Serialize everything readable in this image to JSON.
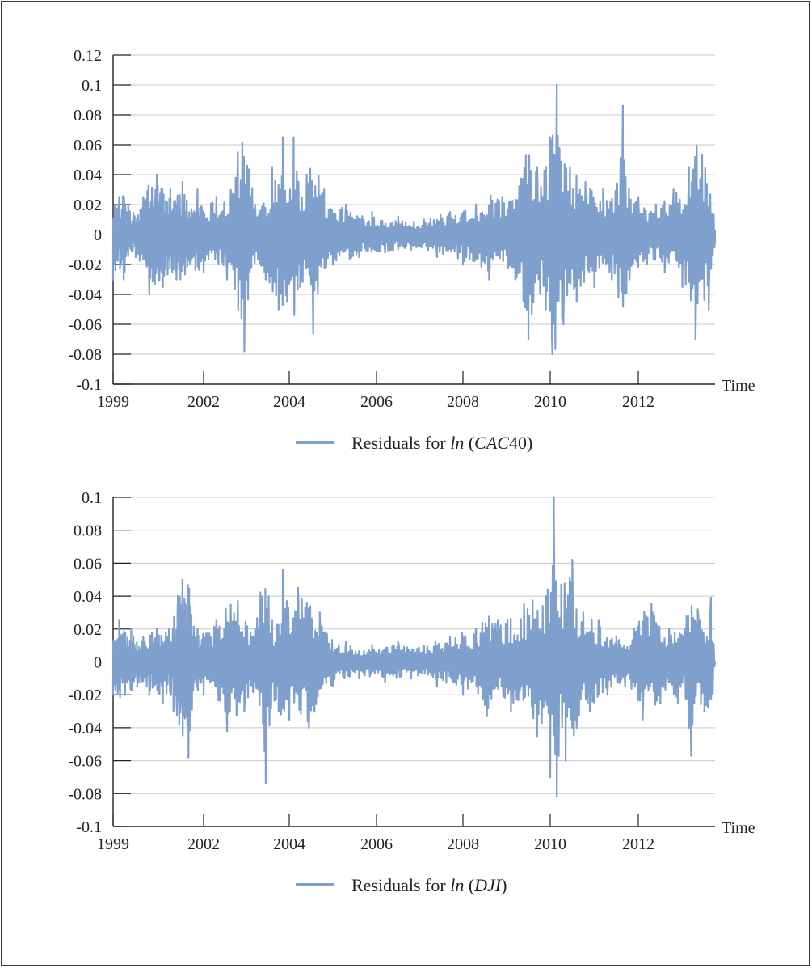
{
  "colors": {
    "series": "#7f9fcd",
    "grid": "#c8c8c8",
    "axis": "#222222"
  },
  "chart_data": [
    {
      "type": "line",
      "xlabel": "Time",
      "ylabel": "",
      "ylim": [
        -0.1,
        0.12
      ],
      "yticks": [
        "0.12",
        "0.1",
        "0.08",
        "0.06",
        "0.04",
        "0.02",
        "0",
        "-0.02",
        "-0.04",
        "-0.06",
        "-0.08",
        "-0.1"
      ],
      "xticks": [
        "1999",
        "2002",
        "2004",
        "2006",
        "2008",
        "2010",
        "2012"
      ],
      "grid": true,
      "legend_position": "bottom",
      "series": [
        {
          "legend": {
            "prefix": "Residuals for ",
            "fn": "ln",
            "open": " (",
            "arg": "CAC",
            "suffix": "40)"
          },
          "x": [
            1999.0,
            1999.2,
            1999.35,
            1999.5,
            1999.75,
            2000.0,
            2000.2,
            2000.45,
            2000.65,
            2000.9,
            2001.1,
            2001.3,
            2001.55,
            2001.8,
            2002.0,
            2002.3,
            2002.55,
            2002.8,
            2002.95,
            2003.2,
            2003.45,
            2003.6,
            2003.75,
            2003.85,
            2003.95,
            2004.1,
            2004.25,
            2004.4,
            2004.55,
            2004.8,
            2005.0,
            2005.3,
            2005.6,
            2005.9,
            2006.2,
            2006.5,
            2006.8,
            2007.1,
            2007.4,
            2007.7,
            2008.0,
            2008.3,
            2008.6,
            2008.9,
            2009.2,
            2009.5,
            2009.7,
            2009.9,
            2010.0,
            2010.05,
            2010.15,
            2010.3,
            2010.45,
            2010.6,
            2010.8,
            2011.0,
            2011.2,
            2011.4,
            2011.55,
            2011.65,
            2011.8,
            2012.0,
            2012.2,
            2012.4,
            2012.6,
            2012.8,
            2013.0,
            2013.15,
            2013.3,
            2013.45,
            2013.6,
            2013.75
          ],
          "y": [
            -0.03,
            0.025,
            -0.03,
            0.02,
            -0.015,
            0.025,
            -0.04,
            0.04,
            -0.035,
            0.03,
            -0.03,
            0.035,
            -0.02,
            0.03,
            -0.025,
            0.025,
            -0.03,
            0.055,
            -0.078,
            0.02,
            -0.03,
            0.045,
            -0.05,
            0.065,
            -0.045,
            0.065,
            -0.035,
            0.04,
            -0.066,
            0.03,
            -0.02,
            0.02,
            -0.015,
            0.015,
            -0.012,
            0.012,
            -0.01,
            0.01,
            -0.015,
            0.015,
            -0.02,
            0.02,
            -0.03,
            0.025,
            -0.03,
            -0.07,
            0.045,
            -0.05,
            0.065,
            -0.08,
            0.1,
            -0.06,
            0.045,
            -0.045,
            0.035,
            -0.035,
            0.03,
            -0.03,
            -0.042,
            0.086,
            -0.03,
            0.025,
            -0.02,
            0.02,
            -0.025,
            0.03,
            -0.035,
            0.045,
            -0.07,
            0.053,
            -0.05,
            -0.005
          ]
        }
      ]
    },
    {
      "type": "line",
      "xlabel": "Time",
      "ylabel": "",
      "ylim": [
        -0.1,
        0.1
      ],
      "yticks": [
        "0.1",
        "0.08",
        "0.06",
        "0.04",
        "0.02",
        "0",
        "-0.02",
        "-0.04",
        "-0.06",
        "-0.08",
        "-0.1"
      ],
      "xticks": [
        "1999",
        "2002",
        "2004",
        "2006",
        "2008",
        "2010",
        "2012"
      ],
      "grid": true,
      "legend_position": "bottom",
      "series": [
        {
          "legend": {
            "prefix": "Residuals for ",
            "fn": "ln",
            "open": " (",
            "arg": "DJI",
            "suffix": ")"
          },
          "x": [
            1999.0,
            1999.2,
            1999.4,
            1999.6,
            1999.8,
            2000.0,
            2000.2,
            2000.45,
            2000.65,
            2000.85,
            2001.0,
            2001.15,
            2001.3,
            2001.5,
            2001.8,
            2002.0,
            2002.3,
            2002.55,
            2002.8,
            2002.95,
            2003.2,
            2003.45,
            2003.6,
            2003.75,
            2003.85,
            2004.0,
            2004.2,
            2004.45,
            2004.7,
            2005.0,
            2005.3,
            2005.6,
            2005.9,
            2006.2,
            2006.5,
            2006.8,
            2007.1,
            2007.4,
            2007.7,
            2008.0,
            2008.3,
            2008.55,
            2008.8,
            2009.1,
            2009.4,
            2009.7,
            2009.9,
            2010.0,
            2010.08,
            2010.15,
            2010.25,
            2010.35,
            2010.5,
            2010.6,
            2010.75,
            2010.9,
            2011.1,
            2011.3,
            2011.5,
            2011.7,
            2011.9,
            2012.1,
            2012.3,
            2012.5,
            2012.7,
            2012.9,
            2013.05,
            2013.2,
            2013.35,
            2013.5,
            2013.65,
            2013.75
          ],
          "y": [
            -0.02,
            0.025,
            -0.02,
            0.02,
            -0.015,
            0.015,
            -0.02,
            0.02,
            -0.025,
            0.02,
            -0.03,
            0.04,
            0.05,
            -0.058,
            0.02,
            -0.02,
            0.025,
            -0.042,
            0.037,
            -0.03,
            0.02,
            -0.074,
            0.025,
            -0.03,
            0.056,
            -0.035,
            0.045,
            -0.04,
            0.03,
            -0.015,
            0.012,
            -0.01,
            0.01,
            -0.012,
            0.012,
            -0.01,
            0.01,
            -0.015,
            0.015,
            -0.02,
            0.02,
            -0.033,
            0.025,
            -0.03,
            0.035,
            -0.045,
            0.04,
            -0.07,
            0.1,
            -0.082,
            0.047,
            -0.06,
            0.062,
            -0.04,
            0.03,
            -0.03,
            0.025,
            -0.02,
            0.015,
            -0.015,
            0.02,
            -0.035,
            0.035,
            -0.025,
            0.02,
            -0.025,
            0.02,
            -0.057,
            0.032,
            -0.03,
            0.039,
            0.0
          ]
        }
      ]
    }
  ]
}
